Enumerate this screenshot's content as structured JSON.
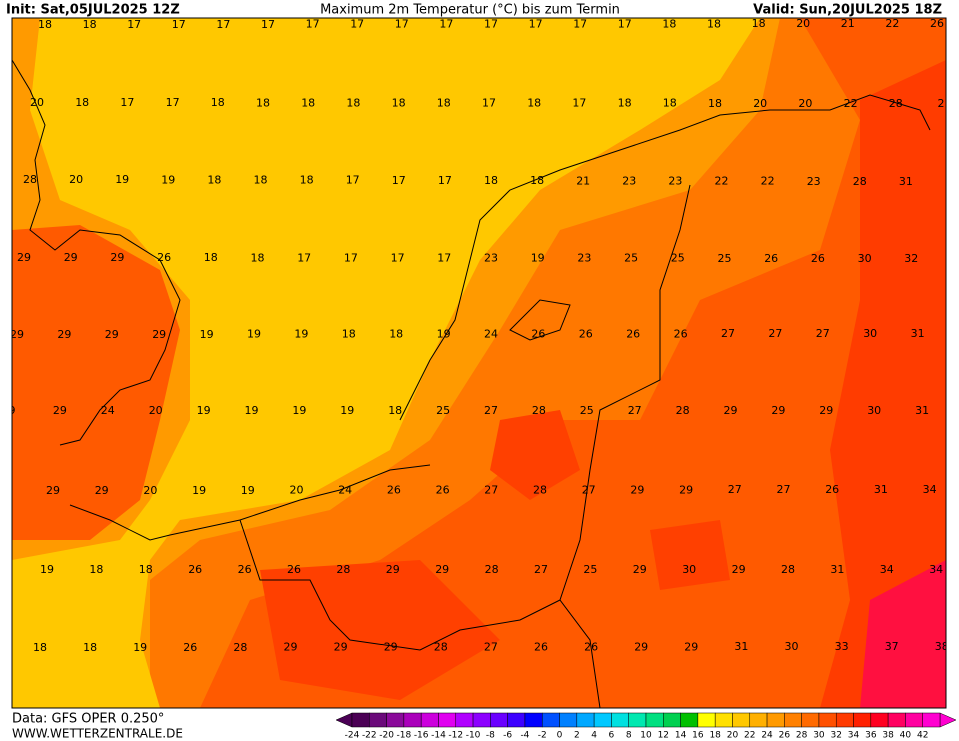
{
  "header": {
    "init": "Init: Sat,05JUL2025 12Z",
    "title": "Maximum 2m Temperatur (°C) bis zum Termin",
    "valid": "Valid: Sun,20JUL2025 18Z"
  },
  "map": {
    "labels": [
      [
        18,
        18,
        17,
        17,
        17,
        17,
        17,
        17,
        17,
        17,
        17,
        17,
        17,
        17,
        18,
        18,
        18,
        20,
        21,
        22,
        26
      ],
      [
        20,
        18,
        17,
        17,
        18,
        18,
        18,
        18,
        18,
        18,
        17,
        18,
        17,
        18,
        18,
        18,
        20,
        20,
        22,
        28,
        2
      ],
      [
        28,
        20,
        19,
        19,
        18,
        18,
        18,
        17,
        17,
        17,
        18,
        18,
        21,
        23,
        23,
        22,
        22,
        23,
        28,
        31
      ],
      [
        29,
        29,
        29,
        26,
        18,
        18,
        17,
        17,
        17,
        17,
        23,
        19,
        23,
        25,
        25,
        25,
        26,
        26,
        30,
        32
      ],
      [
        29,
        29,
        29,
        29,
        19,
        19,
        19,
        18,
        18,
        19,
        24,
        26,
        26,
        26,
        26,
        27,
        27,
        27,
        30,
        31
      ],
      [
        9,
        29,
        24,
        20,
        19,
        19,
        19,
        19,
        18,
        25,
        27,
        28,
        25,
        27,
        28,
        29,
        29,
        29,
        30,
        31
      ],
      [
        29,
        29,
        20,
        19,
        19,
        20,
        24,
        26,
        26,
        27,
        28,
        27,
        29,
        29,
        27,
        27,
        26,
        31,
        34
      ],
      [
        19,
        18,
        18,
        26,
        26,
        26,
        28,
        29,
        29,
        28,
        27,
        25,
        29,
        30,
        29,
        28,
        31,
        34,
        34
      ],
      [
        18,
        18,
        19,
        26,
        28,
        29,
        29,
        29,
        28,
        27,
        26,
        26,
        29,
        29,
        31,
        30,
        33,
        37,
        38
      ]
    ]
  },
  "colorbar": {
    "labels": [
      -24,
      -22,
      -20,
      -18,
      -16,
      -14,
      -12,
      -10,
      -8,
      -6,
      -4,
      -2,
      0,
      2,
      4,
      6,
      8,
      10,
      12,
      14,
      16,
      18,
      20,
      22,
      24,
      26,
      28,
      30,
      32,
      34,
      36,
      38,
      40,
      42
    ],
    "colors": [
      "#4b0055",
      "#6a0a7a",
      "#8a0a9a",
      "#aa00bb",
      "#cc00dd",
      "#e000f0",
      "#b000ff",
      "#8c00ff",
      "#6a00ff",
      "#3c00ff",
      "#0000ff",
      "#0050ff",
      "#0080ff",
      "#00a8ff",
      "#00c8ff",
      "#00e0e0",
      "#00e8b0",
      "#00e080",
      "#00d050",
      "#00c000",
      "#ffff00",
      "#ffe000",
      "#ffc800",
      "#ffb000",
      "#ff9a00",
      "#ff8000",
      "#ff6a00",
      "#ff5000",
      "#ff3a00",
      "#ff2000",
      "#ff0020",
      "#ff0060",
      "#ff00a0",
      "#ff00d0"
    ]
  },
  "footer": {
    "source": "Data: GFS OPER 0.250°",
    "site": "WWW.WETTERZENTRALE.DE"
  }
}
